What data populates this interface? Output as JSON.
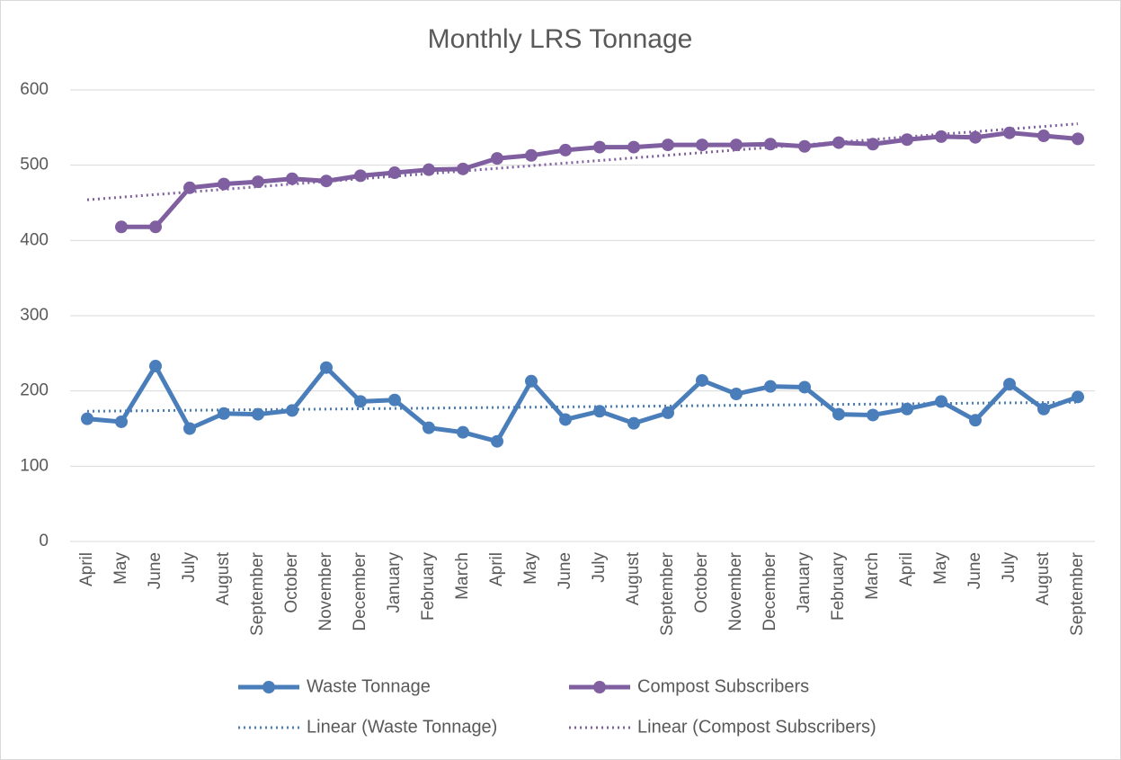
{
  "chart_data": {
    "type": "line",
    "title": "Monthly LRS Tonnage",
    "categories": [
      "April",
      "May",
      "June",
      "July",
      "August",
      "September",
      "October",
      "November",
      "December",
      "January",
      "February",
      "March",
      "April",
      "May",
      "June",
      "July",
      "August",
      "September",
      "October",
      "November",
      "December",
      "January",
      "February",
      "March",
      "April",
      "May",
      "June",
      "July",
      "August",
      "September"
    ],
    "series": [
      {
        "name": "Waste Tonnage",
        "color": "#4a7ebb",
        "style": "solid",
        "marker": true,
        "values": [
          163,
          159,
          233,
          150,
          170,
          169,
          174,
          231,
          186,
          188,
          151,
          145,
          133,
          213,
          162,
          173,
          157,
          171,
          214,
          196,
          206,
          205,
          169,
          168,
          176,
          186,
          161,
          209,
          176,
          192
        ]
      },
      {
        "name": "Compost Subscribers",
        "color": "#7f5fa0",
        "style": "solid",
        "marker": true,
        "values": [
          null,
          418,
          418,
          470,
          475,
          478,
          482,
          479,
          486,
          490,
          494,
          495,
          509,
          513,
          520,
          524,
          524,
          527,
          527,
          527,
          528,
          525,
          530,
          528,
          534,
          538,
          537,
          543,
          539,
          535
        ]
      },
      {
        "name": "Linear (Waste Tonnage)",
        "color": "#4a7ebb",
        "style": "dotted",
        "marker": false,
        "values": [
          173,
          173.4,
          173.8,
          174.2,
          174.7,
          175.1,
          175.5,
          175.9,
          176.3,
          176.7,
          177.1,
          177.6,
          178,
          178.4,
          178.8,
          179.2,
          179.6,
          180,
          180.4,
          180.9,
          181.3,
          181.7,
          182.1,
          182.5,
          182.9,
          183.3,
          183.8,
          184.2,
          184.6,
          185
        ]
      },
      {
        "name": "Linear (Compost Subscribers)",
        "color": "#7f5fa0",
        "style": "dotted",
        "marker": false,
        "values": [
          454,
          457.5,
          461,
          464.4,
          467.9,
          471.4,
          474.9,
          478.4,
          481.9,
          485.3,
          488.8,
          492.3,
          495.8,
          499.3,
          502.8,
          506.2,
          509.7,
          513.2,
          516.7,
          520.2,
          523.7,
          527.1,
          530.6,
          534.1,
          537.6,
          541.1,
          544.6,
          548,
          551.5,
          555
        ]
      }
    ],
    "ylim": [
      0,
      600
    ],
    "yticks": [
      0,
      100,
      200,
      300,
      400,
      500,
      600
    ],
    "grid": true,
    "legend": "bottom"
  }
}
